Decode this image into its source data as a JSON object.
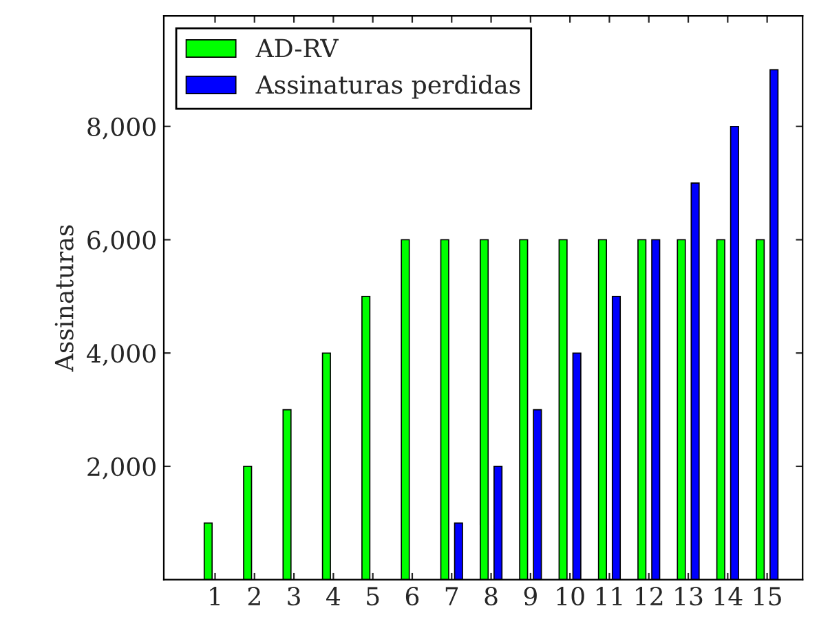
{
  "chart_data": {
    "type": "bar",
    "ylabel": "Assinaturas",
    "categories": [
      "1",
      "2",
      "3",
      "4",
      "5",
      "6",
      "7",
      "8",
      "9",
      "10",
      "11",
      "12",
      "13",
      "14",
      "15"
    ],
    "series": [
      {
        "name": "AD-RV",
        "color": "#00ff00",
        "values": [
          1000,
          2000,
          3000,
          4000,
          5000,
          6000,
          6000,
          6000,
          6000,
          6000,
          6000,
          6000,
          6000,
          6000,
          6000
        ]
      },
      {
        "name": "Assinaturas perdidas",
        "color": "#0000ff",
        "values": [
          null,
          null,
          null,
          null,
          null,
          null,
          1000,
          2000,
          3000,
          4000,
          5000,
          6000,
          7000,
          8000,
          9000
        ]
      }
    ],
    "ylim": [
      0,
      9950
    ],
    "yticks": [
      {
        "value": 2000,
        "label": "2,000"
      },
      {
        "value": 4000,
        "label": "4,000"
      },
      {
        "value": 6000,
        "label": "6,000"
      },
      {
        "value": 8000,
        "label": "8,000"
      }
    ],
    "grid": false,
    "legend": "top left"
  }
}
